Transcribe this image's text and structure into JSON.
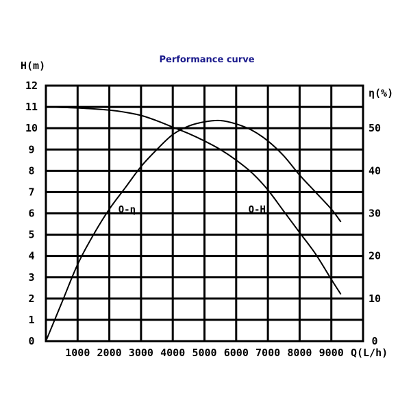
{
  "chart_data": {
    "type": "line",
    "title": "Performance curve",
    "ylabel_left": "H(m)",
    "ylabel_right": "η(%)",
    "xlabel": "Q(L/h)",
    "xlim": [
      0,
      10000
    ],
    "ylim_left": [
      0,
      12
    ],
    "ylim_right": [
      0,
      60
    ],
    "x_ticks": [
      1000,
      2000,
      3000,
      4000,
      5000,
      6000,
      7000,
      8000,
      9000
    ],
    "x_tick_labels": [
      "1000",
      "2000",
      "3000",
      "4000",
      "5000",
      "6000",
      "7000",
      "8000",
      "9000"
    ],
    "y_left_ticks": [
      0,
      1,
      2,
      3,
      4,
      5,
      6,
      7,
      8,
      9,
      10,
      11,
      12
    ],
    "y_left_tick_labels": [
      "0",
      "1",
      "2",
      "3",
      "4",
      "5",
      "6",
      "7",
      "8",
      "9",
      "10",
      "11",
      "12"
    ],
    "y_right_ticks": [
      0,
      10,
      20,
      30,
      40,
      50
    ],
    "y_right_tick_labels": [
      "0",
      "10",
      "20",
      "30",
      "40",
      "50"
    ],
    "grid": true,
    "series": [
      {
        "name": "Q-H",
        "axis": "left",
        "x": [
          0,
          1000,
          2000,
          2500,
          3000,
          3500,
          4000,
          4500,
          5000,
          5500,
          6000,
          6500,
          7000,
          7500,
          8000,
          8500,
          9000,
          9300
        ],
        "y": [
          11.0,
          10.95,
          10.85,
          10.75,
          10.6,
          10.35,
          10.05,
          9.75,
          9.4,
          9.0,
          8.5,
          7.9,
          7.1,
          6.1,
          5.1,
          4.1,
          2.9,
          2.2
        ]
      },
      {
        "name": "Q-η",
        "axis": "right",
        "x": [
          0,
          500,
          1000,
          1500,
          2000,
          2500,
          3000,
          3500,
          4000,
          4500,
          5000,
          5500,
          6000,
          6500,
          7000,
          7500,
          8000,
          8500,
          9000,
          9300
        ],
        "y": [
          0,
          9,
          18,
          25,
          31,
          36,
          41,
          45,
          48.5,
          50.5,
          51.5,
          51.8,
          51,
          49.5,
          47,
          43.5,
          39,
          35,
          31,
          28
        ]
      }
    ],
    "annotations": [
      {
        "text": "Q-η",
        "series": "Q-η",
        "x": 2500,
        "y_right": 31
      },
      {
        "text": "Q-H",
        "series": "Q-H",
        "x": 6600,
        "y_left": 6.2
      }
    ]
  }
}
